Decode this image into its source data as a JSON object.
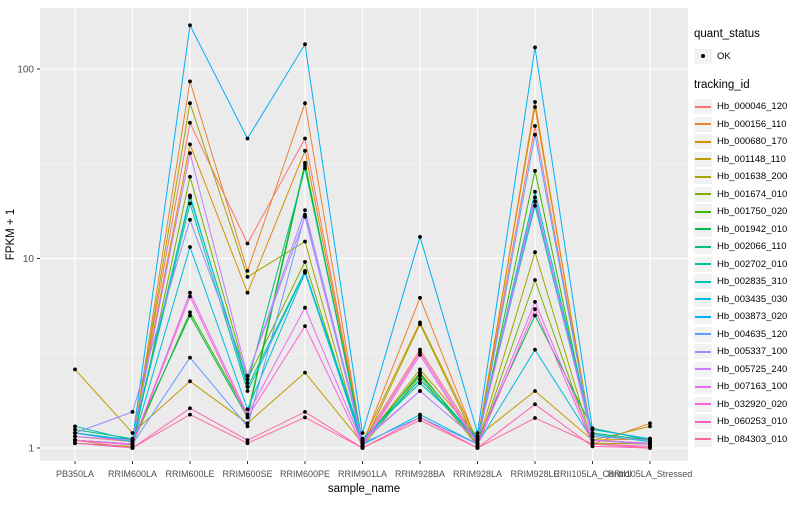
{
  "legend": {
    "quant_status_title": "quant_status",
    "quant_status_value": "OK",
    "tracking_id_title": "tracking_id"
  },
  "theme": {
    "panel_bg": "#ebebeb",
    "grid_major": "#ffffff",
    "grid_minor": "rgba(255,255,255,0.55)",
    "tick_text": "#4d4d4d",
    "axis_text": "#000000",
    "point_color": "#000000",
    "key_bg": "#f2f2f2"
  },
  "chart_data": {
    "type": "line",
    "title": "",
    "xlabel": "sample_name",
    "ylabel": "FPKM + 1",
    "yscale": "log10",
    "yticks": [
      1,
      10,
      100
    ],
    "yminor": [
      3.162,
      31.62
    ],
    "ylim": [
      0.95,
      200
    ],
    "grid": true,
    "legend_position": "right",
    "categories": [
      "PB350LA",
      "RRIM600LA",
      "RRIM600LE",
      "RRIM600SE",
      "RRIM600PE",
      "RRIM901LA",
      "RRIM928BA",
      "RRIM928LA",
      "RRIM928LE",
      "RRII105LA_Control",
      "RRII105LA_Stressed"
    ],
    "series": [
      {
        "name": "Hb_000046_120",
        "color": "#F8766D",
        "values": [
          1.15,
          1.08,
          52,
          12,
          43,
          1.08,
          3.3,
          1.1,
          50,
          1.1,
          1.05
        ]
      },
      {
        "name": "Hb_000156_110",
        "color": "#EA8331",
        "values": [
          1.1,
          1.05,
          86,
          8.6,
          66,
          1.05,
          6.2,
          1.06,
          67,
          1.05,
          1.35
        ]
      },
      {
        "name": "Hb_000680_170",
        "color": "#D89000",
        "values": [
          1.2,
          1.1,
          40,
          6.6,
          37,
          1.08,
          4.6,
          1.1,
          63,
          1.1,
          1.12
        ]
      },
      {
        "name": "Hb_001148_110",
        "color": "#C09B00",
        "values": [
          2.6,
          1.2,
          2.25,
          1.35,
          2.5,
          1.06,
          2.6,
          1.15,
          2.0,
          1.1,
          1.3
        ]
      },
      {
        "name": "Hb_001638_200",
        "color": "#A3A500",
        "values": [
          1.1,
          1.05,
          66,
          8.0,
          12.3,
          1.02,
          4.5,
          1.05,
          10.8,
          1.06,
          1.05
        ]
      },
      {
        "name": "Hb_001674_010",
        "color": "#7CAE00",
        "values": [
          1.06,
          1.02,
          27,
          2.3,
          9.6,
          1.02,
          2.4,
          1.03,
          7.7,
          1.05,
          1.02
        ]
      },
      {
        "name": "Hb_001750_020",
        "color": "#39B600",
        "values": [
          1.1,
          1.05,
          5.2,
          1.5,
          32,
          1.05,
          2.5,
          1.05,
          29,
          1.1,
          1.06
        ]
      },
      {
        "name": "Hb_001942_010",
        "color": "#00BB4E",
        "values": [
          1.2,
          1.1,
          5.0,
          1.45,
          31,
          1.08,
          2.45,
          1.1,
          5.0,
          1.27,
          1.1
        ]
      },
      {
        "name": "Hb_002066_110",
        "color": "#00BF7D",
        "values": [
          1.25,
          1.12,
          21,
          2.2,
          30,
          1.1,
          2.3,
          1.12,
          20,
          1.2,
          1.1
        ]
      },
      {
        "name": "Hb_002702_010",
        "color": "#00C1A7",
        "values": [
          1.3,
          1.1,
          19.5,
          2.0,
          8.5,
          1.12,
          2.2,
          1.15,
          19,
          1.15,
          1.1
        ]
      },
      {
        "name": "Hb_002835_310",
        "color": "#00BFC4",
        "values": [
          1.2,
          1.08,
          21.5,
          2.1,
          8.6,
          1.08,
          2.3,
          1.1,
          22.5,
          1.18,
          1.08
        ]
      },
      {
        "name": "Hb_003435_030",
        "color": "#00BAE0",
        "values": [
          1.1,
          1.05,
          11.5,
          1.6,
          8.4,
          1.04,
          1.5,
          1.05,
          3.3,
          1.1,
          1.05
        ]
      },
      {
        "name": "Hb_003873_020",
        "color": "#00B0F6",
        "values": [
          1.2,
          1.1,
          170,
          43,
          135,
          1.2,
          13,
          1.2,
          130,
          1.25,
          1.12
        ]
      },
      {
        "name": "Hb_004635_120",
        "color": "#619CFF",
        "values": [
          1.1,
          1.05,
          3.0,
          1.3,
          17,
          1.06,
          1.45,
          1.05,
          45,
          1.1,
          1.05
        ]
      },
      {
        "name": "Hb_005337_100",
        "color": "#9590FF",
        "values": [
          1.2,
          1.55,
          16,
          2.4,
          18,
          1.1,
          2.0,
          1.1,
          20,
          1.15,
          1.1
        ]
      },
      {
        "name": "Hb_005725_240",
        "color": "#C77CFF",
        "values": [
          1.15,
          1.1,
          36,
          2.4,
          16.6,
          1.08,
          2.0,
          1.1,
          21,
          1.1,
          1.06
        ]
      },
      {
        "name": "Hb_007163_100",
        "color": "#E76BF3",
        "values": [
          1.1,
          1.05,
          6.6,
          1.5,
          5.5,
          1.05,
          3.2,
          1.06,
          5.9,
          1.1,
          1.05
        ]
      },
      {
        "name": "Hb_032920_020",
        "color": "#FA62DB",
        "values": [
          1.1,
          1.04,
          6.3,
          1.45,
          4.4,
          1.02,
          3.1,
          1.03,
          5.4,
          1.05,
          1.02
        ]
      },
      {
        "name": "Hb_060253_010",
        "color": "#FF62BC",
        "values": [
          1.06,
          1.0,
          1.62,
          1.1,
          1.55,
          1.0,
          1.45,
          1.0,
          1.7,
          1.02,
          1.0
        ]
      },
      {
        "name": "Hb_084303_010",
        "color": "#FF6A98",
        "values": [
          1.1,
          1.0,
          1.5,
          1.06,
          1.45,
          1.0,
          1.4,
          1.0,
          1.44,
          1.05,
          1.0
        ]
      }
    ]
  }
}
